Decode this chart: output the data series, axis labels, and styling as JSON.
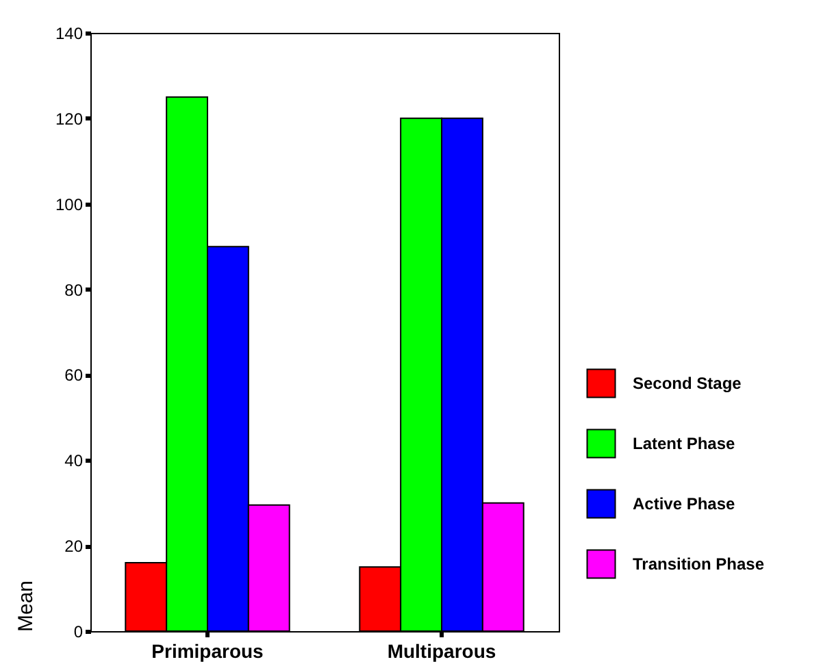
{
  "chart_data": {
    "type": "bar",
    "categories": [
      "Primiparous",
      "Multiparous"
    ],
    "ylabel": "Mean",
    "ylim": [
      0,
      140
    ],
    "yticks": [
      0,
      20,
      40,
      60,
      80,
      100,
      120,
      140
    ],
    "grid": false,
    "legend": "right",
    "series": [
      {
        "name": "Second Stage",
        "color": "#ff0000",
        "values": [
          16,
          15
        ]
      },
      {
        "name": "Latent Phase",
        "color": "#00ff00",
        "values": [
          125,
          120
        ]
      },
      {
        "name": "Active Phase",
        "color": "#0000ff",
        "values": [
          90,
          120
        ]
      },
      {
        "name": "Transition Phase",
        "color": "#ff00ff",
        "values": [
          29.5,
          30
        ]
      }
    ]
  }
}
